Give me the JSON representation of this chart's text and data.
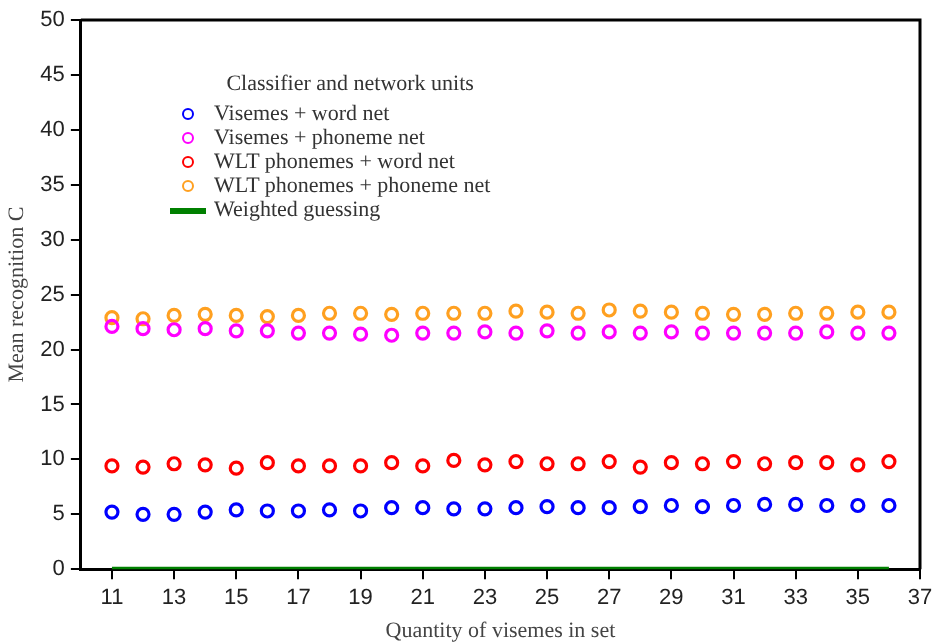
{
  "chart_data": {
    "type": "scatter",
    "xlabel": "Quantity of visemes in set",
    "ylabel": "Mean recognition C",
    "legend_title": "Classifier and network units",
    "x": [
      11,
      12,
      13,
      14,
      15,
      16,
      17,
      18,
      19,
      20,
      21,
      22,
      23,
      24,
      25,
      26,
      27,
      28,
      29,
      30,
      31,
      32,
      33,
      34,
      35,
      36
    ],
    "xlim": [
      10,
      37
    ],
    "xticks": [
      11,
      13,
      15,
      17,
      19,
      21,
      23,
      25,
      27,
      29,
      31,
      33,
      35,
      37
    ],
    "ylim": [
      0,
      50
    ],
    "yticks": [
      0,
      5,
      10,
      15,
      20,
      25,
      30,
      35,
      40,
      45,
      50
    ],
    "grid": false,
    "legend": "top left",
    "marker": "circle",
    "series": [
      {
        "name": "Visemes + word net",
        "color": "#0000ff",
        "values": [
          5.2,
          5.0,
          5.0,
          5.2,
          5.4,
          5.3,
          5.3,
          5.4,
          5.3,
          5.6,
          5.6,
          5.5,
          5.5,
          5.6,
          5.7,
          5.6,
          5.6,
          5.7,
          5.8,
          5.7,
          5.8,
          5.9,
          5.9,
          5.8,
          5.8,
          5.8
        ]
      },
      {
        "name": "Visemes + phoneme net",
        "color": "#ff00ff",
        "values": [
          22.1,
          21.9,
          21.8,
          21.9,
          21.7,
          21.7,
          21.5,
          21.5,
          21.4,
          21.3,
          21.5,
          21.5,
          21.6,
          21.5,
          21.7,
          21.5,
          21.6,
          21.5,
          21.6,
          21.5,
          21.5,
          21.5,
          21.5,
          21.6,
          21.5,
          21.5
        ]
      },
      {
        "name": "WLT phonemes + word net",
        "color": "#ff0000",
        "values": [
          9.4,
          9.3,
          9.6,
          9.5,
          9.2,
          9.7,
          9.4,
          9.4,
          9.4,
          9.7,
          9.4,
          9.9,
          9.5,
          9.8,
          9.6,
          9.6,
          9.8,
          9.3,
          9.7,
          9.6,
          9.8,
          9.6,
          9.7,
          9.7,
          9.5,
          9.8
        ]
      },
      {
        "name": "WLT phonemes + phoneme net",
        "color": "#ffa020",
        "values": [
          22.9,
          22.8,
          23.1,
          23.2,
          23.1,
          23.0,
          23.1,
          23.3,
          23.3,
          23.2,
          23.3,
          23.3,
          23.3,
          23.5,
          23.4,
          23.3,
          23.6,
          23.5,
          23.4,
          23.3,
          23.2,
          23.2,
          23.3,
          23.3,
          23.4,
          23.4
        ]
      },
      {
        "name": "Weighted guessing",
        "type": "line",
        "color": "#008000",
        "x": [
          11,
          36
        ],
        "values": [
          0,
          0
        ],
        "marker": "none",
        "line_style": "solid"
      }
    ]
  }
}
